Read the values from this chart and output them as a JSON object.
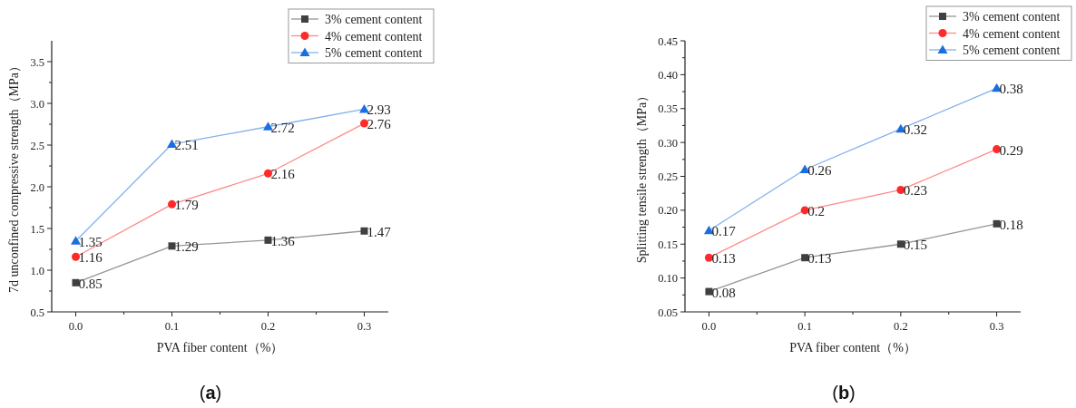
{
  "chart_data": [
    {
      "type": "line",
      "title": "(**a**)",
      "xlabel": "PVA fiber content（%）",
      "ylabel": "7d unconfined compressive strength（MPa）",
      "x": [
        0,
        0.1,
        0.2,
        0.3
      ],
      "series": [
        {
          "name": "3% cement content",
          "color": "#404040",
          "marker": "square",
          "values": [
            0.85,
            1.29,
            1.36,
            1.47
          ]
        },
        {
          "name": "4% cement content",
          "color": "#ff2a2a",
          "marker": "circle",
          "values": [
            1.16,
            1.79,
            2.16,
            2.76
          ]
        },
        {
          "name": "5% cement content",
          "color": "#1a6fe0",
          "marker": "triangle",
          "values": [
            1.35,
            2.51,
            2.72,
            2.93
          ]
        }
      ],
      "xlim": [
        -0.025,
        0.325
      ],
      "xticks": [
        {
          "value": 0,
          "label": "0.0"
        },
        {
          "value": 0.05,
          "label": null
        },
        {
          "value": 0.1,
          "label": "0.1"
        },
        {
          "value": 0.15,
          "label": null
        },
        {
          "value": 0.2,
          "label": "0.2"
        },
        {
          "value": 0.25,
          "label": null
        },
        {
          "value": 0.3,
          "label": "0.3"
        }
      ],
      "ylim": [
        0.5,
        3.75
      ],
      "yticks": [
        {
          "value": 0.5,
          "label": "0.5"
        },
        {
          "value": 1,
          "label": "1.0"
        },
        {
          "value": 1.5,
          "label": "1.5"
        },
        {
          "value": 2,
          "label": "2.0"
        },
        {
          "value": 2.5,
          "label": "2.5"
        },
        {
          "value": 3,
          "label": "3.0"
        },
        {
          "value": 3.5,
          "label": "3.5"
        }
      ],
      "data_labels": true,
      "legend": "top right",
      "line_style": "solid"
    },
    {
      "type": "line",
      "title": "(**b**)",
      "xlabel": "PVA fiber content（%）",
      "ylabel": "Splitting tensile strength（MPa）",
      "x": [
        0,
        0.1,
        0.2,
        0.3
      ],
      "series": [
        {
          "name": "3% cement content",
          "color": "#404040",
          "marker": "square",
          "values": [
            0.08,
            0.13,
            0.15,
            0.18
          ]
        },
        {
          "name": "4% cement content",
          "color": "#ff2a2a",
          "marker": "circle",
          "values": [
            0.13,
            0.2,
            0.23,
            0.29
          ]
        },
        {
          "name": "5% cement content",
          "color": "#1a6fe0",
          "marker": "triangle",
          "values": [
            0.17,
            0.26,
            0.32,
            0.38
          ]
        }
      ],
      "xlim": [
        -0.025,
        0.325
      ],
      "xticks": [
        {
          "value": 0,
          "label": "0.0"
        },
        {
          "value": 0.05,
          "label": null
        },
        {
          "value": 0.1,
          "label": "0.1"
        },
        {
          "value": 0.15,
          "label": null
        },
        {
          "value": 0.2,
          "label": "0.2"
        },
        {
          "value": 0.25,
          "label": null
        },
        {
          "value": 0.3,
          "label": "0.3"
        }
      ],
      "ylim": [
        0.05,
        0.45
      ],
      "yticks": [
        {
          "value": 0.05,
          "label": "0.05"
        },
        {
          "value": 0.1,
          "label": "0.10"
        },
        {
          "value": 0.15,
          "label": "0.15"
        },
        {
          "value": 0.2,
          "label": "0.20"
        },
        {
          "value": 0.25,
          "label": "0.25"
        },
        {
          "value": 0.3,
          "label": "0.30"
        },
        {
          "value": 0.35,
          "label": "0.35"
        },
        {
          "value": 0.4,
          "label": "0.40"
        },
        {
          "value": 0.45,
          "label": "0.45"
        }
      ],
      "data_labels": true,
      "legend": "top right",
      "line_style": "solid"
    }
  ]
}
